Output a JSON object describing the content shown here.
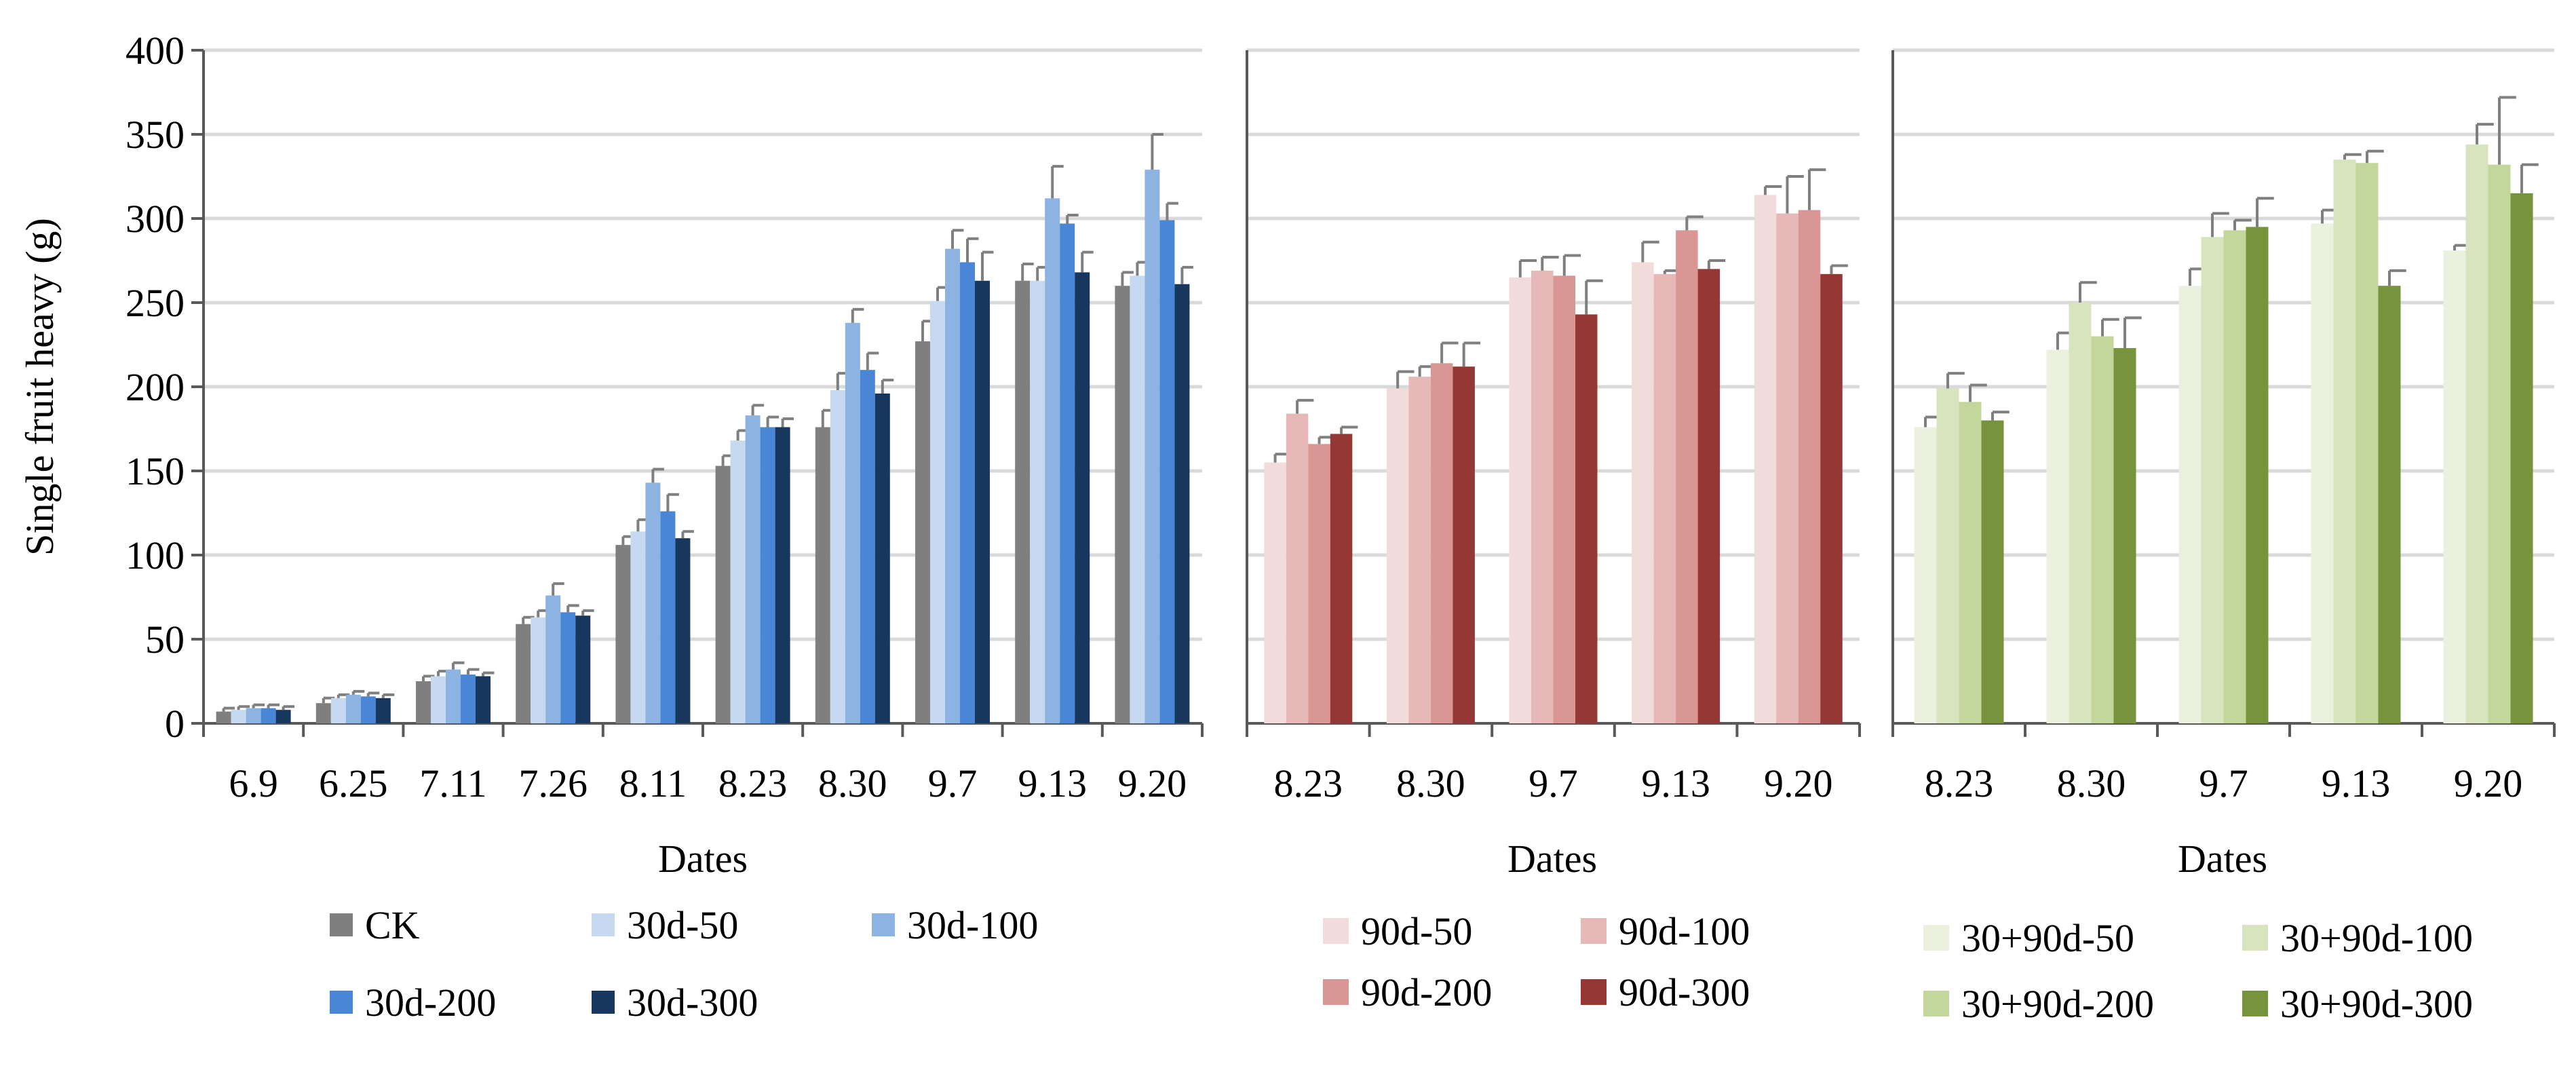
{
  "chart_data": [
    {
      "type": "bar",
      "ylabel": "Single fruit heavy (g)",
      "xlabel": "Dates",
      "ylim": [
        0,
        400
      ],
      "yticks": [
        "0",
        "50",
        "100",
        "150",
        "200",
        "250",
        "300",
        "350",
        "400"
      ],
      "grid": true,
      "categories": [
        "6.9",
        "6.25",
        "7.11",
        "7.26",
        "8.11",
        "8.23",
        "8.30",
        "9.7",
        "9.13",
        "9.20"
      ],
      "series": [
        {
          "name": "CK",
          "color": "#7f7f7f",
          "values": [
            7,
            12,
            25,
            59,
            106,
            153,
            176,
            227,
            263,
            260
          ],
          "errors": [
            2,
            3,
            3,
            4,
            5,
            6,
            10,
            12,
            10,
            8
          ]
        },
        {
          "name": "30d-50",
          "color": "#c6d9f1",
          "values": [
            8,
            15,
            28,
            63,
            114,
            168,
            198,
            251,
            263,
            266
          ],
          "errors": [
            2,
            2,
            3,
            4,
            7,
            6,
            10,
            8,
            8,
            8
          ]
        },
        {
          "name": "30d-100",
          "color": "#8db3e2",
          "values": [
            9,
            17,
            32,
            76,
            143,
            183,
            238,
            282,
            312,
            329
          ],
          "errors": [
            2,
            2,
            4,
            7,
            8,
            6,
            8,
            11,
            19,
            21
          ]
        },
        {
          "name": "30d-200",
          "color": "#4a86d6",
          "values": [
            9,
            16,
            29,
            66,
            126,
            176,
            210,
            274,
            297,
            299
          ],
          "errors": [
            2,
            2,
            3,
            4,
            10,
            6,
            10,
            14,
            5,
            10
          ]
        },
        {
          "name": "30d-300",
          "color": "#17375e",
          "values": [
            8,
            15,
            28,
            64,
            110,
            176,
            196,
            263,
            268,
            261
          ],
          "errors": [
            2,
            2,
            2,
            3,
            4,
            5,
            8,
            17,
            12,
            10
          ]
        }
      ]
    },
    {
      "type": "bar",
      "xlabel": "Dates",
      "ylim": [
        0,
        400
      ],
      "grid": true,
      "categories": [
        "8.23",
        "8.30",
        "9.7",
        "9.13",
        "9.20"
      ],
      "series": [
        {
          "name": "90d-50",
          "color": "#f2dcdb",
          "values": [
            155,
            199,
            265,
            274,
            314
          ],
          "errors": [
            5,
            10,
            10,
            12,
            5
          ]
        },
        {
          "name": "90d-100",
          "color": "#e6b8b7",
          "values": [
            184,
            206,
            269,
            267,
            303
          ],
          "errors": [
            8,
            6,
            8,
            2,
            22
          ]
        },
        {
          "name": "90d-200",
          "color": "#da9694",
          "values": [
            166,
            214,
            266,
            293,
            305
          ],
          "errors": [
            4,
            12,
            12,
            8,
            24
          ]
        },
        {
          "name": "90d-300",
          "color": "#953735",
          "values": [
            172,
            212,
            243,
            270,
            267
          ],
          "errors": [
            4,
            14,
            20,
            5,
            5
          ]
        }
      ]
    },
    {
      "type": "bar",
      "xlabel": "Dates",
      "ylim": [
        0,
        400
      ],
      "grid": true,
      "categories": [
        "8.23",
        "8.30",
        "9.7",
        "9.13",
        "9.20"
      ],
      "series": [
        {
          "name": "30+90d-50",
          "color": "#ebf1de",
          "values": [
            176,
            222,
            260,
            297,
            281
          ],
          "errors": [
            6,
            10,
            10,
            8,
            3
          ]
        },
        {
          "name": "30+90d-100",
          "color": "#d7e4bd",
          "values": [
            199,
            250,
            289,
            335,
            344
          ],
          "errors": [
            9,
            12,
            14,
            3,
            12
          ]
        },
        {
          "name": "30+90d-200",
          "color": "#c3d69b",
          "values": [
            191,
            230,
            293,
            333,
            332
          ],
          "errors": [
            10,
            10,
            6,
            7,
            40
          ]
        },
        {
          "name": "30+90d-300",
          "color": "#77933c",
          "values": [
            180,
            223,
            295,
            260,
            315
          ],
          "errors": [
            5,
            18,
            17,
            9,
            17
          ]
        }
      ]
    }
  ]
}
